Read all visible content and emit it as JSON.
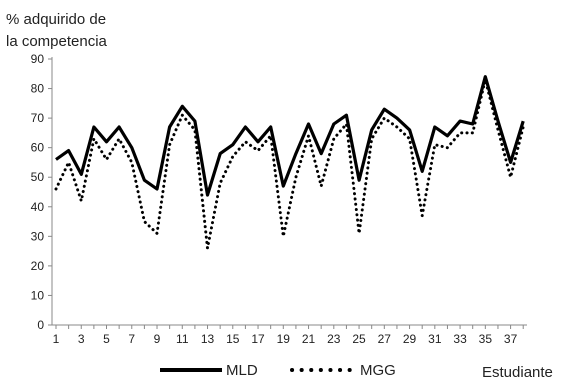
{
  "chart_data": {
    "type": "line",
    "title": "",
    "ylabel_lines": [
      "% adquirido de",
      "la competencia"
    ],
    "xlabel": "Estudiante",
    "ylim": [
      0,
      90
    ],
    "yticks": [
      0,
      10,
      20,
      30,
      40,
      50,
      60,
      70,
      80,
      90
    ],
    "x": [
      1,
      2,
      3,
      4,
      5,
      6,
      7,
      8,
      9,
      10,
      11,
      12,
      13,
      14,
      15,
      16,
      17,
      18,
      19,
      20,
      21,
      22,
      23,
      24,
      25,
      26,
      27,
      28,
      29,
      30,
      31,
      32,
      33,
      34,
      35,
      36,
      37,
      38
    ],
    "xtick_labels": [
      "1",
      "3",
      "5",
      "7",
      "9",
      "11",
      "13",
      "15",
      "17",
      "19",
      "21",
      "23",
      "25",
      "27",
      "29",
      "31",
      "33",
      "35",
      "37"
    ],
    "grid": false,
    "legend_position": "bottom",
    "series": [
      {
        "name": "MLD",
        "style": "solid",
        "color": "#000000",
        "values": [
          56,
          59,
          51,
          67,
          62,
          67,
          60,
          49,
          46,
          67,
          74,
          69,
          44,
          58,
          61,
          67,
          62,
          67,
          47,
          58,
          68,
          58,
          68,
          71,
          49,
          66,
          73,
          70,
          66,
          52,
          67,
          64,
          69,
          68,
          84,
          69,
          55,
          69
        ]
      },
      {
        "name": "MGG",
        "style": "dotted",
        "color": "#000000",
        "values": [
          46,
          55,
          42,
          63,
          56,
          63,
          55,
          35,
          31,
          61,
          71,
          66,
          26,
          48,
          57,
          62,
          59,
          64,
          30,
          50,
          64,
          47,
          63,
          68,
          31,
          63,
          70,
          67,
          63,
          37,
          61,
          60,
          65,
          65,
          83,
          66,
          50,
          67
        ]
      }
    ]
  }
}
